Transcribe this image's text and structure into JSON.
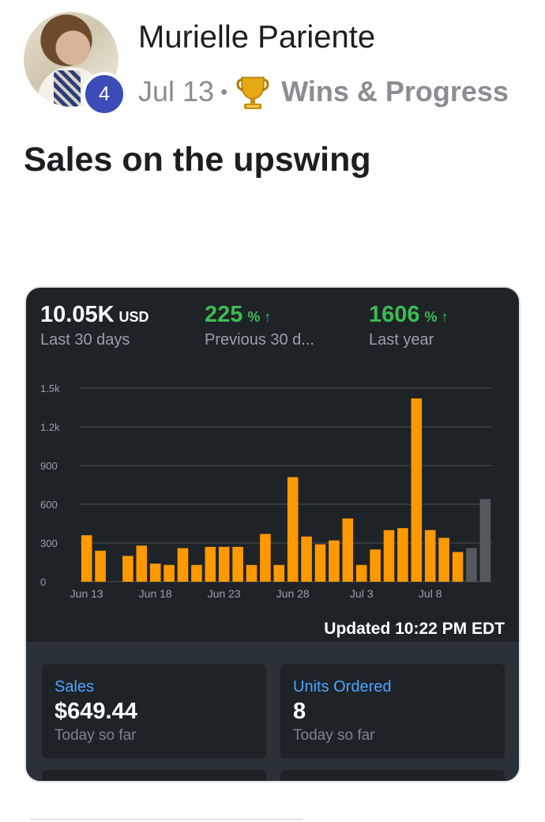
{
  "post": {
    "author": "Murielle Pariente",
    "level": "4",
    "date": "Jul 13",
    "separator": "•",
    "category_icon": "trophy-icon",
    "category": "Wins & Progress",
    "title": "Sales on the upswing"
  },
  "dashboard": {
    "kpis": [
      {
        "value": "10.05K",
        "unit": "USD",
        "label": "Last 30 days"
      },
      {
        "value": "225",
        "unit": "% ↑",
        "label": "Previous 30 d..."
      },
      {
        "value": "1606",
        "unit": "% ↑",
        "label": "Last year"
      }
    ],
    "updated": "Updated 10:22 PM EDT",
    "cards": [
      {
        "label": "Sales",
        "value": "$649.44",
        "sub": "Today so far"
      },
      {
        "label": "Units Ordered",
        "value": "8",
        "sub": "Today so far"
      }
    ]
  },
  "colors": {
    "bar": "#ff9900",
    "bar_pending": "#55595e",
    "kpi_green": "#3dbb52",
    "dashboard_bg": "#1e2327",
    "badge": "#3b4cb8",
    "link_blue": "#4ea3ff"
  },
  "chart_data": {
    "type": "bar",
    "title": "",
    "xlabel": "",
    "ylabel": "",
    "ylim": [
      0,
      1500
    ],
    "yticks": [
      0,
      300,
      600,
      900,
      1200,
      1500
    ],
    "ytick_labels": [
      "0",
      "300",
      "600",
      "900",
      "1.2k",
      "1.5k"
    ],
    "x_tick_labels": [
      {
        "label": "Jun 13",
        "index": 0
      },
      {
        "label": "Jun 18",
        "index": 5
      },
      {
        "label": "Jun 23",
        "index": 10
      },
      {
        "label": "Jun 28",
        "index": 15
      },
      {
        "label": "Jul 3",
        "index": 20
      },
      {
        "label": "Jul 8",
        "index": 25
      }
    ],
    "grid": true,
    "series": [
      {
        "values": [
          360,
          240,
          0,
          200,
          280,
          140,
          130,
          260,
          130,
          270,
          270,
          270,
          130,
          370,
          130,
          810,
          350,
          290,
          320,
          490,
          130,
          250,
          400,
          415,
          1420,
          400,
          340,
          230,
          260,
          640
        ],
        "pending_from_index": 28
      }
    ]
  }
}
